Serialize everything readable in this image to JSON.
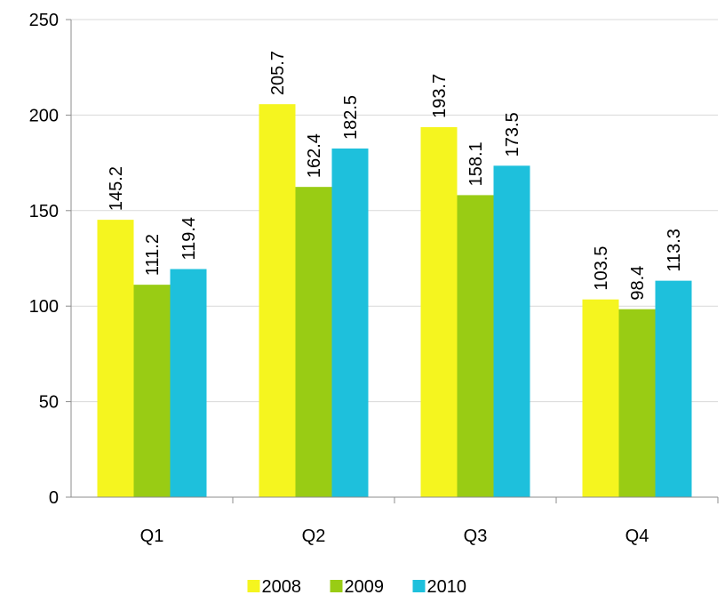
{
  "chart_data": {
    "type": "bar",
    "categories": [
      "Q1",
      "Q2",
      "Q3",
      "Q4"
    ],
    "series": [
      {
        "name": "2008",
        "color": "#f5f51f",
        "values": [
          145.2,
          205.7,
          193.7,
          103.5
        ]
      },
      {
        "name": "2009",
        "color": "#99cc14",
        "values": [
          111.2,
          162.4,
          158.1,
          98.4
        ]
      },
      {
        "name": "2010",
        "color": "#1ec0dc",
        "values": [
          119.4,
          182.5,
          173.5,
          113.3
        ]
      }
    ],
    "y_ticks": [
      "0",
      "50",
      "100",
      "150",
      "200",
      "250"
    ],
    "ylim": [
      0,
      250
    ],
    "grid": true,
    "legend_position": "bottom",
    "data_labels": true
  }
}
